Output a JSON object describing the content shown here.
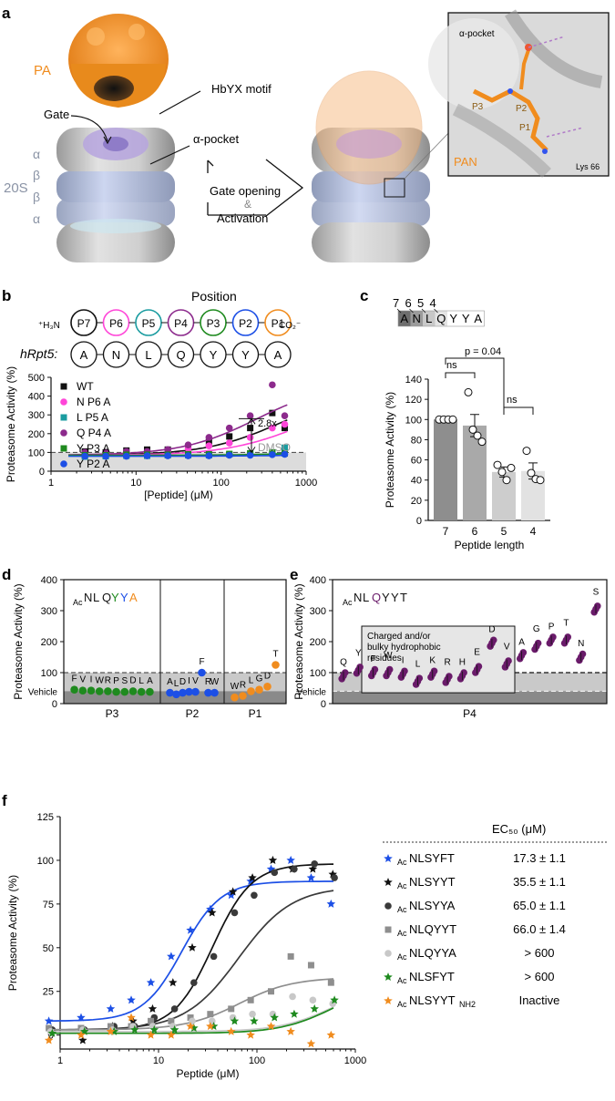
{
  "colors": {
    "wt": "#111111",
    "n_p6a": "#ff45d8",
    "l_p5a": "#1a9ca0",
    "q_p4a": "#8c2a8c",
    "y_p3a": "#1e8a1e",
    "y_p2a": "#1c4fe6",
    "pa": "#f08c1e",
    "p1": "#f08c1e",
    "p2": "#1c4fe6",
    "p3": "#1e8a1e",
    "p4": "#6a1b6a",
    "p5": "#1a9ca0",
    "p6": "#ff45d8",
    "p7": "#111111",
    "f_nlsyft": "#1c4fe6",
    "f_nlsyyt": "#111111",
    "f_nlsyya": "#3a3a3a",
    "f_nlqyyt": "#8e8e8e",
    "f_nlqyya": "#c8c8c8",
    "f_nlsfyt": "#1e8a1e",
    "f_nlsyyt_nh2": "#f08c1e"
  },
  "panel_a": {
    "label": "a",
    "pa_label": "PA",
    "hbyx_label": "HbYX motif",
    "gate_label": "Gate",
    "alpha_pocket_label": "α-pocket",
    "ring_labels": [
      "α",
      "β",
      "β",
      "α"
    ],
    "subunit_label": "20S",
    "arrow_text_1": "Gate opening",
    "arrow_amp": "&",
    "arrow_text_2": "Activation",
    "inset_pocket_label": "α-pocket",
    "inset_p3": "P3",
    "inset_p2": "P2",
    "inset_p1": "P1",
    "inset_pan": "PAN",
    "inset_lys": "Lys 66"
  },
  "panel_b": {
    "label": "b",
    "position_title": "Position",
    "positions": [
      "P7",
      "P6",
      "P5",
      "P4",
      "P3",
      "P2",
      "P1"
    ],
    "n_term": "⁺H₃N",
    "c_term": "CO₂⁻",
    "hrpt5_label": "hRpt5:",
    "hrpt5_seq": [
      "A",
      "N",
      "L",
      "Q",
      "Y",
      "Y",
      "A"
    ],
    "fold_label": "2.8x",
    "dmso_label": "DMSO"
  },
  "panel_c": {
    "label": "c",
    "seq_numbers": [
      "7",
      "6",
      "5",
      "4"
    ],
    "seq_letters": [
      "A",
      "N",
      "L",
      "Q",
      "Y",
      "Y",
      "A"
    ],
    "sig_ns1": "ns",
    "sig_p": "p = 0.04",
    "sig_ns2": "ns"
  },
  "panel_d": {
    "label": "d",
    "peptide_prefix": "Ac",
    "peptide_seq": [
      "N",
      "L",
      "Q",
      "Y",
      "Y",
      "A"
    ],
    "vehicle_label": "Vehicle",
    "groups": [
      "P3",
      "P2",
      "P1"
    ]
  },
  "panel_e": {
    "label": "e",
    "peptide_prefix": "Ac",
    "peptide_seq": [
      "N",
      "L",
      "Q",
      "Y",
      "Y",
      "T"
    ],
    "box_text": [
      "Charged and/or",
      "bulky hydrophobic",
      "residues"
    ],
    "vehicle_label": "Vehicle",
    "group_label": "P4"
  },
  "panel_f": {
    "label": "f",
    "ec50_header": "EC₅₀ (μM)",
    "legend": [
      {
        "name": "NLSYFT",
        "ec50": "17.3 ± 1.1",
        "marker": "star"
      },
      {
        "name": "NLSYYT",
        "ec50": "35.5 ± 1.1",
        "marker": "star"
      },
      {
        "name": "NLSYYA",
        "ec50": "65.0 ± 1.1",
        "marker": "circle"
      },
      {
        "name": "NLQYYT",
        "ec50": "66.0 ± 1.4",
        "marker": "square"
      },
      {
        "name": "NLQYYA",
        "ec50": "> 600",
        "marker": "circle"
      },
      {
        "name": "NLSFYT",
        "ec50": "> 600",
        "marker": "star"
      },
      {
        "name": "NLSYYT",
        "suffix": "NH2",
        "ec50": "Inactive",
        "marker": "star"
      }
    ],
    "legend_prefix": "Ac"
  },
  "chart_data": [
    {
      "id": "b",
      "type": "scatter",
      "title": "",
      "xlabel": "[Peptide] (μM)",
      "ylabel": "Proteasome Activity (%)",
      "xscale": "log",
      "xlim": [
        1,
        1000
      ],
      "ylim": [
        0,
        500
      ],
      "xticks": [
        1,
        10,
        100,
        1000
      ],
      "yticks": [
        0,
        100,
        200,
        300,
        400,
        500
      ],
      "reference_line": 100,
      "x": [
        2.5,
        4.4,
        7.7,
        13.5,
        23.6,
        41,
        72,
        125,
        220,
        400,
        560
      ],
      "series": [
        {
          "name": "WT",
          "marker": "square",
          "values": [
            105,
            100,
            110,
            115,
            115,
            130,
            155,
            185,
            230,
            310,
            230
          ],
          "fit": {
            "bottom": 85,
            "top": 420,
            "ec50": 470
          }
        },
        {
          "name": "N P6 A",
          "marker": "circle",
          "values": [
            90,
            95,
            95,
            100,
            105,
            120,
            135,
            150,
            180,
            230,
            250
          ],
          "fit": {
            "bottom": 85,
            "top": 380,
            "ec50": 800
          }
        },
        {
          "name": "L P5 A",
          "marker": "square",
          "values": [
            78,
            80,
            82,
            82,
            85,
            85,
            85,
            90,
            95,
            100,
            125
          ],
          "fit": {
            "bottom": 80,
            "top": 180,
            "ec50": 3000
          }
        },
        {
          "name": "Q P4 A",
          "marker": "circle",
          "values": [
            100,
            100,
            105,
            105,
            115,
            140,
            180,
            230,
            295,
            460,
            295
          ],
          "fit": {
            "bottom": 85,
            "top": 470,
            "ec50": 260
          }
        },
        {
          "name": "Y P3 A",
          "marker": "square",
          "values": [
            85,
            85,
            88,
            88,
            88,
            90,
            90,
            92,
            95,
            100,
            95
          ],
          "fit": {
            "bottom": 85,
            "top": 120,
            "ec50": 2000
          }
        },
        {
          "name": "Y P2 A",
          "marker": "circle",
          "values": [
            80,
            80,
            80,
            82,
            82,
            82,
            82,
            85,
            85,
            88,
            90
          ],
          "fit": {
            "bottom": 80,
            "top": 100,
            "ec50": 2000
          }
        }
      ]
    },
    {
      "id": "c",
      "type": "bar",
      "xlabel": "Peptide length",
      "ylabel": "Proteasome Activity (%)",
      "ylim": [
        0,
        140
      ],
      "yticks": [
        0,
        20,
        40,
        60,
        80,
        100,
        120,
        140
      ],
      "categories": [
        "7",
        "6",
        "5",
        "4"
      ],
      "values": [
        100,
        94,
        48,
        49
      ],
      "errors": [
        0,
        11,
        5,
        8
      ],
      "points": [
        [
          100,
          100,
          100,
          100
        ],
        [
          127,
          90,
          84,
          78
        ],
        [
          55,
          48,
          40,
          52
        ],
        [
          69,
          47,
          41,
          40
        ]
      ]
    },
    {
      "id": "d",
      "type": "scatter",
      "ylabel": "Proteasome Activity (%)",
      "ylim": [
        0,
        400
      ],
      "yticks": [
        0,
        100,
        200,
        300,
        400
      ],
      "vehicle": 40,
      "groups": [
        {
          "name": "P3",
          "residues": [
            "F",
            "V",
            "I",
            "W",
            "R",
            "P",
            "S",
            "D",
            "L",
            "A"
          ],
          "values": [
            45,
            42,
            42,
            40,
            40,
            38,
            38,
            40,
            38,
            38
          ]
        },
        {
          "name": "P2",
          "residues": [
            "A",
            "L",
            "D",
            "I",
            "V",
            "F",
            "R",
            "W"
          ],
          "values": [
            35,
            30,
            35,
            38,
            38,
            100,
            35,
            35
          ]
        },
        {
          "name": "P1",
          "residues": [
            "W",
            "R",
            "L",
            "G",
            "D",
            "T"
          ],
          "values": [
            20,
            25,
            40,
            45,
            55,
            125
          ]
        }
      ]
    },
    {
      "id": "e",
      "type": "scatter",
      "ylabel": "Proteasome Activity (%)",
      "ylim": [
        0,
        400
      ],
      "yticks": [
        0,
        100,
        200,
        300,
        400
      ],
      "vehicle": 40,
      "group": "P4",
      "residues": [
        "Q",
        "Y",
        "F",
        "W",
        "I",
        "L",
        "K",
        "R",
        "H",
        "E",
        "D",
        "V",
        "A",
        "G",
        "P",
        "T",
        "N",
        "S"
      ],
      "values": [
        90,
        108,
        100,
        100,
        95,
        72,
        95,
        78,
        90,
        110,
        195,
        128,
        155,
        185,
        205,
        205,
        150,
        305
      ]
    },
    {
      "id": "f",
      "type": "scatter",
      "xlabel": "Peptide (μM)",
      "ylabel": "Proteasome Activity (%)",
      "xscale": "log",
      "xlim": [
        1,
        1000
      ],
      "ylim": [
        -8,
        125
      ],
      "xticks": [
        1,
        10,
        100,
        1000
      ],
      "yticks": [
        0,
        25,
        50,
        75,
        100,
        125
      ],
      "x": [
        0.8,
        1.7,
        3.4,
        5.5,
        8.7,
        14,
        22,
        35,
        57,
        90,
        145,
        230,
        370,
        590
      ],
      "series": [
        {
          "name": "AcNLSYFT",
          "marker": "star",
          "values": [
            8,
            10,
            15,
            20,
            30,
            45,
            60,
            72,
            80,
            88,
            95,
            100,
            90,
            75
          ],
          "fit": {
            "bottom": 8,
            "top": 88,
            "ec50": 17.3
          }
        },
        {
          "name": "AcNLSYYT",
          "marker": "star",
          "values": [
            2,
            -3,
            5,
            8,
            15,
            30,
            50,
            70,
            82,
            90,
            100,
            95,
            95,
            92
          ],
          "fit": {
            "bottom": 3,
            "top": 98,
            "ec50": 35.5
          }
        },
        {
          "name": "AcNLSYYA",
          "marker": "circle",
          "values": [
            3,
            3,
            5,
            5,
            10,
            15,
            30,
            45,
            70,
            80,
            93,
            95,
            98,
            90
          ],
          "fit": {
            "bottom": 3,
            "top": 85,
            "ec50": 65
          }
        },
        {
          "name": "AcNLQYYT",
          "marker": "square",
          "values": [
            4,
            4,
            5,
            5,
            8,
            8,
            10,
            12,
            15,
            20,
            25,
            45,
            40,
            30
          ],
          "fit": {
            "bottom": 3,
            "top": 33,
            "ec50": 66
          }
        },
        {
          "name": "AcNLQYYA",
          "marker": "circle",
          "values": [
            2,
            3,
            3,
            5,
            5,
            5,
            8,
            8,
            10,
            12,
            12,
            22,
            20,
            18
          ],
          "fit": {
            "bottom": 2,
            "top": 30,
            "ec50": 600
          }
        },
        {
          "name": "AcNLSFYT",
          "marker": "star",
          "values": [
            1,
            2,
            2,
            3,
            3,
            3,
            4,
            5,
            8,
            8,
            10,
            12,
            15,
            20
          ],
          "fit": {
            "bottom": 1,
            "top": 30,
            "ec50": 600
          }
        },
        {
          "name": "AcNLSYYT-NH2",
          "marker": "star",
          "values": [
            -3,
            0,
            2,
            10,
            0,
            0,
            5,
            5,
            2,
            0,
            5,
            2,
            -5,
            0
          ]
        }
      ]
    }
  ]
}
